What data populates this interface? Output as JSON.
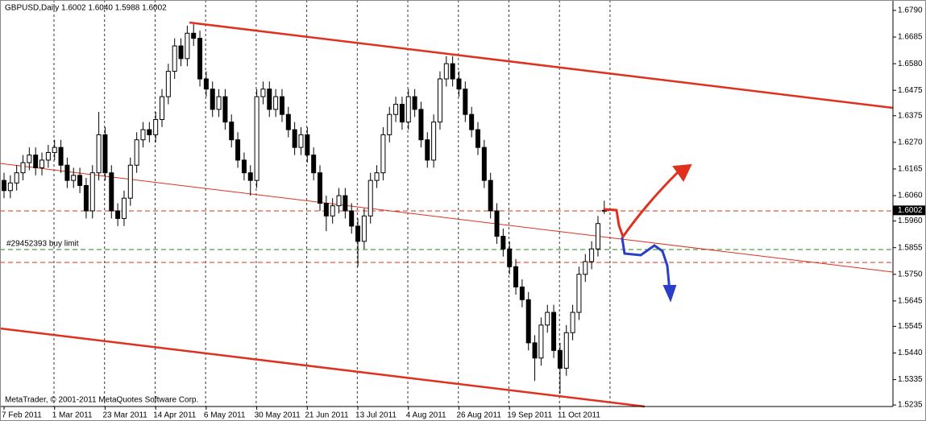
{
  "chart_data": {
    "type": "candlestick",
    "title": "GBPUSD,Daily  1.6002 1.6040 1.5988 1.6002",
    "footer": "MetaTrader, © 2001-2011 MetaQuotes Software Corp.",
    "order_label": "#29452393 buy limit",
    "up_color": "#ffffff",
    "down_color": "#000000",
    "categories": [
      "7 Feb 2011",
      "1 Mar 2011",
      "23 Mar 2011",
      "14 Apr 2011",
      "6 May 2011",
      "30 May 2011",
      "21 Jun 2011",
      "13 Jul 2011",
      "4 Aug 2011",
      "26 Aug 2011",
      "19 Sep 2011",
      "11 Oct 2011"
    ],
    "ylim": [
      1.5229,
      1.6831
    ],
    "yticks": [
      {
        "value": 1.679,
        "label": "1.6790"
      },
      {
        "value": 1.6685,
        "label": "1.6685"
      },
      {
        "value": 1.658,
        "label": "1.6580"
      },
      {
        "value": 1.6475,
        "label": "1.6475"
      },
      {
        "value": 1.6375,
        "label": "1.6375"
      },
      {
        "value": 1.627,
        "label": "1.6270"
      },
      {
        "value": 1.6165,
        "label": "1.6165"
      },
      {
        "value": 1.606,
        "label": "1.6060"
      },
      {
        "value": 1.596,
        "label": "1.5960"
      },
      {
        "value": 1.5855,
        "label": "1.5855"
      },
      {
        "value": 1.575,
        "label": "1.5750"
      },
      {
        "value": 1.5645,
        "label": "1.5645"
      },
      {
        "value": 1.5545,
        "label": "1.5545"
      },
      {
        "value": 1.544,
        "label": "1.5440"
      },
      {
        "value": 1.5335,
        "label": "1.5335"
      },
      {
        "value": 1.5235,
        "label": "1.5235"
      }
    ],
    "candles": [
      [
        1.612,
        1.615,
        1.605,
        1.608
      ],
      [
        1.608,
        1.614,
        1.605,
        1.611
      ],
      [
        1.611,
        1.618,
        1.608,
        1.615
      ],
      [
        1.615,
        1.622,
        1.612,
        1.619
      ],
      [
        1.619,
        1.625,
        1.616,
        1.622
      ],
      [
        1.622,
        1.625,
        1.614,
        1.617
      ],
      [
        1.617,
        1.623,
        1.614,
        1.62
      ],
      [
        1.62,
        1.626,
        1.617,
        1.623
      ],
      [
        1.623,
        1.628,
        1.62,
        1.625
      ],
      [
        1.625,
        1.628,
        1.615,
        1.618
      ],
      [
        1.618,
        1.621,
        1.609,
        1.612
      ],
      [
        1.612,
        1.617,
        1.609,
        1.614
      ],
      [
        1.614,
        1.617,
        1.607,
        1.61
      ],
      [
        1.61,
        1.613,
        1.597,
        1.6
      ],
      [
        1.6,
        1.618,
        1.597,
        1.615
      ],
      [
        1.615,
        1.639,
        1.612,
        1.63
      ],
      [
        1.63,
        1.633,
        1.612,
        1.615
      ],
      [
        1.615,
        1.618,
        1.597,
        1.6
      ],
      [
        1.6,
        1.603,
        1.594,
        1.597
      ],
      [
        1.597,
        1.608,
        1.594,
        1.605
      ],
      [
        1.605,
        1.621,
        1.602,
        1.618
      ],
      [
        1.618,
        1.631,
        1.615,
        1.628
      ],
      [
        1.628,
        1.635,
        1.625,
        1.632
      ],
      [
        1.632,
        1.635,
        1.627,
        1.63
      ],
      [
        1.63,
        1.639,
        1.627,
        1.636
      ],
      [
        1.636,
        1.648,
        1.633,
        1.645
      ],
      [
        1.645,
        1.658,
        1.642,
        1.655
      ],
      [
        1.655,
        1.668,
        1.652,
        1.665
      ],
      [
        1.665,
        1.668,
        1.657,
        1.66
      ],
      [
        1.66,
        1.673,
        1.657,
        1.67
      ],
      [
        1.67,
        1.6736,
        1.665,
        1.668
      ],
      [
        1.668,
        1.671,
        1.649,
        1.652
      ],
      [
        1.652,
        1.655,
        1.645,
        1.648
      ],
      [
        1.648,
        1.651,
        1.637,
        1.64
      ],
      [
        1.64,
        1.648,
        1.637,
        1.645
      ],
      [
        1.645,
        1.648,
        1.632,
        1.635
      ],
      [
        1.635,
        1.638,
        1.625,
        1.628
      ],
      [
        1.628,
        1.631,
        1.617,
        1.62
      ],
      [
        1.62,
        1.623,
        1.612,
        1.615
      ],
      [
        1.615,
        1.618,
        1.606,
        1.612
      ],
      [
        1.612,
        1.648,
        1.609,
        1.645
      ],
      [
        1.645,
        1.651,
        1.642,
        1.648
      ],
      [
        1.648,
        1.651,
        1.637,
        1.64
      ],
      [
        1.64,
        1.648,
        1.637,
        1.645
      ],
      [
        1.645,
        1.648,
        1.635,
        1.638
      ],
      [
        1.638,
        1.641,
        1.629,
        1.632
      ],
      [
        1.632,
        1.635,
        1.622,
        1.625
      ],
      [
        1.625,
        1.633,
        1.622,
        1.63
      ],
      [
        1.63,
        1.633,
        1.619,
        1.622
      ],
      [
        1.622,
        1.625,
        1.612,
        1.615
      ],
      [
        1.615,
        1.618,
        1.6,
        1.603
      ],
      [
        1.603,
        1.606,
        1.592,
        1.598
      ],
      [
        1.598,
        1.605,
        1.595,
        1.602
      ],
      [
        1.602,
        1.609,
        1.599,
        1.606
      ],
      [
        1.606,
        1.609,
        1.597,
        1.6
      ],
      [
        1.6,
        1.603,
        1.591,
        1.594
      ],
      [
        1.594,
        1.597,
        1.578,
        1.588
      ],
      [
        1.588,
        1.601,
        1.585,
        1.598
      ],
      [
        1.598,
        1.615,
        1.595,
        1.612
      ],
      [
        1.612,
        1.618,
        1.609,
        1.615
      ],
      [
        1.615,
        1.633,
        1.612,
        1.63
      ],
      [
        1.63,
        1.641,
        1.627,
        1.638
      ],
      [
        1.638,
        1.645,
        1.635,
        1.642
      ],
      [
        1.642,
        1.645,
        1.632,
        1.635
      ],
      [
        1.635,
        1.648,
        1.632,
        1.645
      ],
      [
        1.645,
        1.648,
        1.637,
        1.64
      ],
      [
        1.64,
        1.643,
        1.625,
        1.628
      ],
      [
        1.628,
        1.631,
        1.617,
        1.62
      ],
      [
        1.62,
        1.638,
        1.617,
        1.635
      ],
      [
        1.635,
        1.655,
        1.632,
        1.652
      ],
      [
        1.652,
        1.661,
        1.649,
        1.658
      ],
      [
        1.658,
        1.661,
        1.649,
        1.652
      ],
      [
        1.652,
        1.655,
        1.645,
        1.648
      ],
      [
        1.648,
        1.651,
        1.635,
        1.638
      ],
      [
        1.638,
        1.641,
        1.629,
        1.632
      ],
      [
        1.632,
        1.635,
        1.622,
        1.625
      ],
      [
        1.625,
        1.628,
        1.609,
        1.612
      ],
      [
        1.612,
        1.615,
        1.597,
        1.6
      ],
      [
        1.6,
        1.603,
        1.587,
        1.59
      ],
      [
        1.59,
        1.593,
        1.582,
        1.585
      ],
      [
        1.585,
        1.588,
        1.575,
        1.578
      ],
      [
        1.578,
        1.581,
        1.567,
        1.57
      ],
      [
        1.57,
        1.573,
        1.562,
        1.565
      ],
      [
        1.565,
        1.568,
        1.545,
        1.548
      ],
      [
        1.548,
        1.551,
        1.533,
        1.542
      ],
      [
        1.542,
        1.558,
        1.539,
        1.555
      ],
      [
        1.555,
        1.563,
        1.552,
        1.56
      ],
      [
        1.56,
        1.563,
        1.542,
        1.545
      ],
      [
        1.545,
        1.548,
        1.528,
        1.538
      ],
      [
        1.538,
        1.555,
        1.535,
        1.552
      ],
      [
        1.552,
        1.563,
        1.549,
        1.56
      ],
      [
        1.56,
        1.578,
        1.557,
        1.575
      ],
      [
        1.575,
        1.583,
        1.572,
        1.58
      ],
      [
        1.58,
        1.588,
        1.577,
        1.585
      ],
      [
        1.585,
        1.598,
        1.582,
        1.595
      ],
      [
        1.6002,
        1.604,
        1.5988,
        1.6002
      ]
    ]
  }
}
